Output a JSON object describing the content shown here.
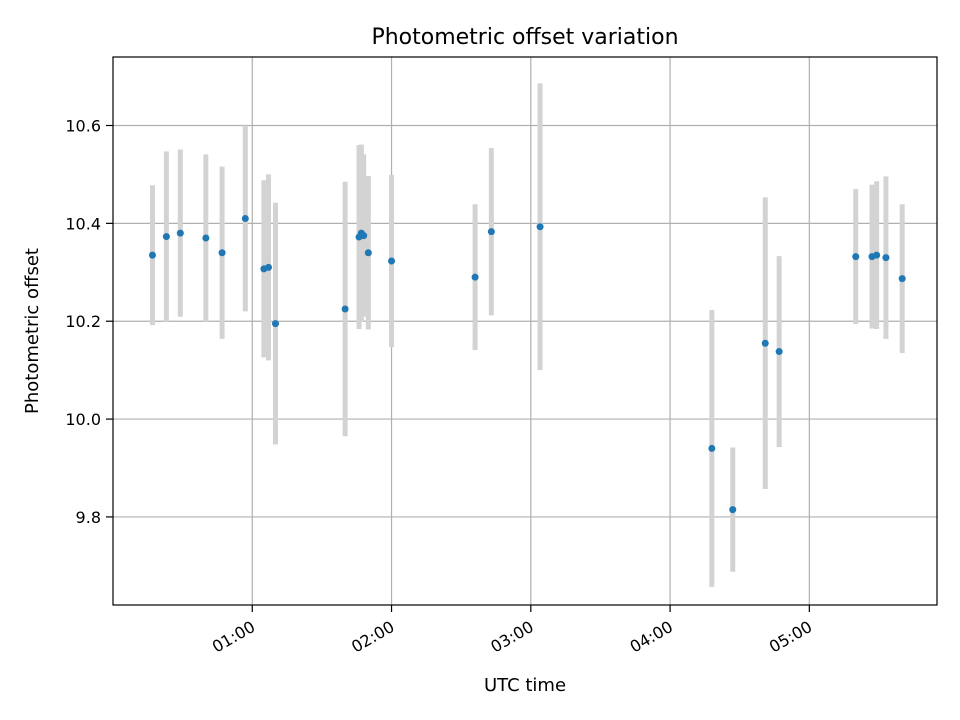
{
  "chart_data": {
    "type": "scatter",
    "title": "Photometric offset variation",
    "xlabel": "UTC time",
    "ylabel": "Photometric offset",
    "x_unit": "UTC time (HH:MM)",
    "xlim": [
      "00:00",
      "05:55"
    ],
    "ylim": [
      9.62,
      10.74
    ],
    "x_ticks": [
      "01:00",
      "02:00",
      "03:00",
      "04:00",
      "05:00"
    ],
    "y_ticks": [
      9.8,
      10.0,
      10.2,
      10.4,
      10.6
    ],
    "grid": true,
    "legend": "none",
    "marker_color": "#1f77b4",
    "errorbar_color": "#d3d3d3",
    "points": [
      {
        "x": "00:17",
        "y": 10.335,
        "err": 0.143
      },
      {
        "x": "00:23",
        "y": 10.373,
        "err": 0.174
      },
      {
        "x": "00:29",
        "y": 10.38,
        "err": 0.171
      },
      {
        "x": "00:40",
        "y": 10.37,
        "err": 0.171
      },
      {
        "x": "00:47",
        "y": 10.34,
        "err": 0.176
      },
      {
        "x": "00:57",
        "y": 10.41,
        "err": 0.19
      },
      {
        "x": "01:05",
        "y": 10.307,
        "err": 0.181
      },
      {
        "x": "01:07",
        "y": 10.31,
        "err": 0.19
      },
      {
        "x": "01:10",
        "y": 10.195,
        "err": 0.247
      },
      {
        "x": "01:40",
        "y": 10.225,
        "err": 0.26
      },
      {
        "x": "01:46",
        "y": 10.372,
        "err": 0.188
      },
      {
        "x": "01:47",
        "y": 10.38,
        "err": 0.181
      },
      {
        "x": "01:48",
        "y": 10.375,
        "err": 0.166
      },
      {
        "x": "01:50",
        "y": 10.34,
        "err": 0.157
      },
      {
        "x": "02:00",
        "y": 10.323,
        "err": 0.176
      },
      {
        "x": "02:36",
        "y": 10.29,
        "err": 0.149
      },
      {
        "x": "02:43",
        "y": 10.383,
        "err": 0.171
      },
      {
        "x": "03:04",
        "y": 10.393,
        "err": 0.293
      },
      {
        "x": "04:18",
        "y": 9.94,
        "err": 0.283
      },
      {
        "x": "04:27",
        "y": 9.815,
        "err": 0.127
      },
      {
        "x": "04:41",
        "y": 10.155,
        "err": 0.298
      },
      {
        "x": "04:47",
        "y": 10.138,
        "err": 0.195
      },
      {
        "x": "05:20",
        "y": 10.332,
        "err": 0.138
      },
      {
        "x": "05:27",
        "y": 10.332,
        "err": 0.147
      },
      {
        "x": "05:29",
        "y": 10.335,
        "err": 0.151
      },
      {
        "x": "05:33",
        "y": 10.33,
        "err": 0.166
      },
      {
        "x": "05:40",
        "y": 10.287,
        "err": 0.152
      }
    ]
  }
}
